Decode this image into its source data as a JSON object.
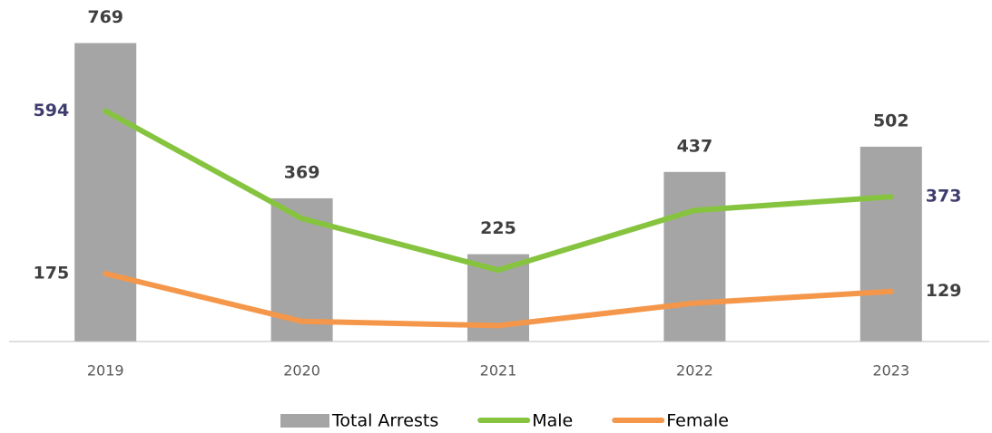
{
  "chart_data": {
    "type": "combo",
    "categories": [
      "2019",
      "2020",
      "2021",
      "2022",
      "2023"
    ],
    "series": [
      {
        "name": "Total Arrests",
        "type": "bar",
        "color": "#a5a5a5",
        "values": [
          769,
          369,
          225,
          437,
          502
        ]
      },
      {
        "name": "Male",
        "type": "line",
        "color": "#86c440",
        "values": [
          594,
          317,
          184,
          338,
          373
        ]
      },
      {
        "name": "Female",
        "type": "line",
        "color": "#f5974a",
        "values": [
          175,
          52,
          41,
          99,
          129
        ]
      }
    ],
    "ylim": [
      0,
      880
    ]
  }
}
